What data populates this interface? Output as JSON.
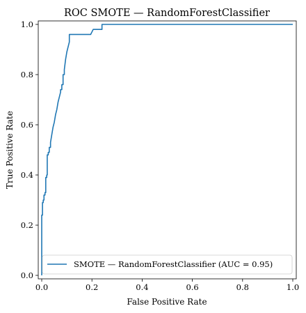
{
  "chart_data": {
    "type": "line",
    "title": "ROC SMOTE — RandomForestClassifier",
    "xlabel": "False Positive Rate",
    "ylabel": "True Positive Rate",
    "xlim": [
      0.0,
      1.0
    ],
    "ylim": [
      0.0,
      1.0
    ],
    "xticks": [
      "0.0",
      "0.2",
      "0.4",
      "0.6",
      "0.8",
      "1.0"
    ],
    "yticks": [
      "0.0",
      "0.2",
      "0.4",
      "0.6",
      "0.8",
      "1.0"
    ],
    "grid": false,
    "legend_position": "lower-right",
    "series": [
      {
        "name": "SMOTE — RandomForestClassifier (AUC = 0.95)",
        "color": "#1f77b4",
        "x": [
          0.0,
          0.0,
          0.003,
          0.003,
          0.006,
          0.006,
          0.009,
          0.009,
          0.013,
          0.013,
          0.016,
          0.016,
          0.02,
          0.02,
          0.022,
          0.022,
          0.026,
          0.026,
          0.03,
          0.03,
          0.035,
          0.035,
          0.04,
          0.045,
          0.05,
          0.055,
          0.06,
          0.065,
          0.07,
          0.075,
          0.075,
          0.08,
          0.08,
          0.085,
          0.085,
          0.09,
          0.09,
          0.095,
          0.1,
          0.11,
          0.11,
          0.195,
          0.2,
          0.205,
          0.24,
          0.24,
          1.0
        ],
        "y": [
          0.0,
          0.24,
          0.24,
          0.29,
          0.29,
          0.3,
          0.3,
          0.32,
          0.32,
          0.33,
          0.33,
          0.39,
          0.39,
          0.4,
          0.4,
          0.48,
          0.48,
          0.49,
          0.49,
          0.51,
          0.51,
          0.53,
          0.56,
          0.59,
          0.61,
          0.64,
          0.66,
          0.69,
          0.71,
          0.73,
          0.74,
          0.74,
          0.76,
          0.76,
          0.8,
          0.8,
          0.82,
          0.86,
          0.89,
          0.93,
          0.96,
          0.96,
          0.97,
          0.98,
          0.98,
          1.0,
          1.0
        ]
      }
    ]
  }
}
